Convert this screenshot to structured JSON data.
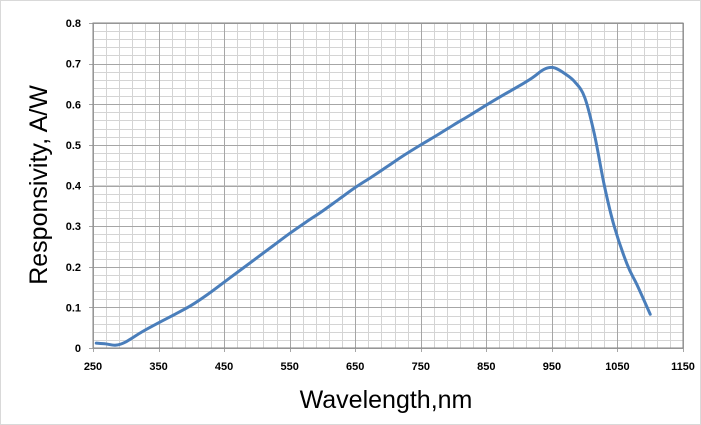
{
  "chart_data": {
    "type": "line",
    "title": "",
    "xlabel": "Wavelength,nm",
    "ylabel": "Responsivity, A/W",
    "xlim": [
      250,
      1150
    ],
    "ylim": [
      0,
      0.8
    ],
    "x_ticks": [
      250,
      350,
      450,
      550,
      650,
      750,
      850,
      950,
      1050,
      1150
    ],
    "x_tick_labels": [
      "250",
      "350",
      "450",
      "550",
      "650",
      "750",
      "850",
      "950",
      "1050",
      "1150"
    ],
    "y_ticks": [
      0,
      0.1,
      0.2,
      0.3,
      0.4,
      0.5,
      0.6,
      0.7,
      0.8
    ],
    "y_tick_labels": [
      "0",
      "0.1",
      "0.2",
      "0.3",
      "0.4",
      "0.5",
      "0.6",
      "0.7",
      "0.8"
    ],
    "grid": true,
    "grid_minor_x_step": 20,
    "grid_minor_y_step": 0.02,
    "legend": "none",
    "series": [
      {
        "color": "#4a7ebb",
        "x": [
          255,
          270,
          285,
          300,
          325,
          350,
          375,
          400,
          425,
          450,
          475,
          500,
          525,
          550,
          575,
          600,
          625,
          650,
          675,
          700,
          725,
          750,
          775,
          800,
          825,
          850,
          875,
          900,
          920,
          935,
          945,
          955,
          970,
          985,
          1000,
          1015,
          1030,
          1045,
          1065,
          1080,
          1100
        ],
        "y": [
          0.012,
          0.01,
          0.007,
          0.015,
          0.04,
          0.062,
          0.083,
          0.105,
          0.132,
          0.162,
          0.192,
          0.222,
          0.252,
          0.282,
          0.31,
          0.337,
          0.366,
          0.395,
          0.421,
          0.448,
          0.475,
          0.5,
          0.524,
          0.549,
          0.573,
          0.598,
          0.622,
          0.645,
          0.665,
          0.683,
          0.69,
          0.689,
          0.675,
          0.655,
          0.617,
          0.525,
          0.4,
          0.3,
          0.205,
          0.155,
          0.083
        ]
      }
    ]
  }
}
